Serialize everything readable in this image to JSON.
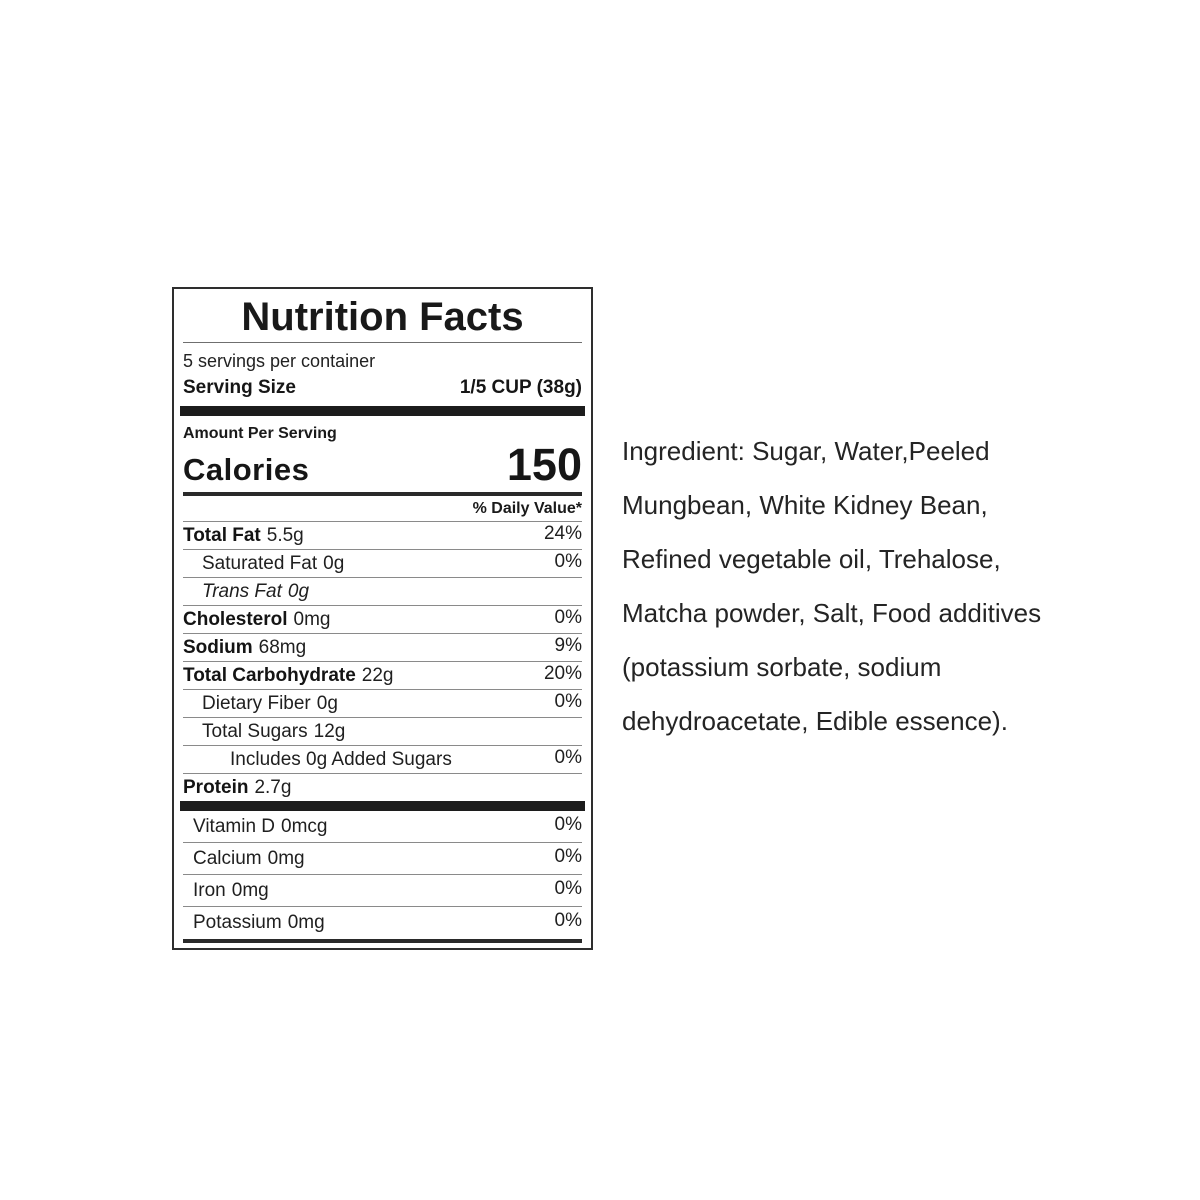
{
  "label": {
    "title": "Nutrition Facts",
    "servings_per_container": "5 servings per container",
    "serving_size_label": "Serving Size",
    "serving_size_value": "1/5 CUP (38g)",
    "amount_per_serving": "Amount Per Serving",
    "calories_label": "Calories",
    "calories_value": "150",
    "daily_value_header": "% Daily Value*",
    "rows": [
      {
        "label": "Total Fat",
        "amount": "5.5g",
        "dv": "24%"
      },
      {
        "label": "Saturated Fat",
        "amount": "0g",
        "dv": "0%"
      },
      {
        "label": "Trans Fat",
        "amount": "0g",
        "dv": ""
      },
      {
        "label": "Cholesterol",
        "amount": "0mg",
        "dv": "0%"
      },
      {
        "label": "Sodium",
        "amount": "68mg",
        "dv": "9%"
      },
      {
        "label": "Total Carbohydrate",
        "amount": "22g",
        "dv": "20%"
      },
      {
        "label": "Dietary Fiber",
        "amount": "0g",
        "dv": "0%"
      },
      {
        "label": "Total Sugars",
        "amount": "12g",
        "dv": ""
      },
      {
        "label": "Includes 0g Added Sugars",
        "amount": "",
        "dv": "0%"
      },
      {
        "label": "Protein",
        "amount": "2.7g",
        "dv": ""
      },
      {
        "label": "Vitamin D",
        "amount": "0mcg",
        "dv": "0%"
      },
      {
        "label": "Calcium",
        "amount": "0mg",
        "dv": "0%"
      },
      {
        "label": "Iron",
        "amount": "0mg",
        "dv": "0%"
      },
      {
        "label": "Potassium",
        "amount": "0mg",
        "dv": "0%"
      }
    ]
  },
  "ingredients": {
    "lines": [
      "Ingredient: Sugar, Water,Peeled",
      "Mungbean, White Kidney Bean,",
      "Refined vegetable oil, Trehalose,",
      "Matcha powder, Salt, Food additives",
      "(potassium sorbate, sodium",
      "dehydroacetate, Edible essence)."
    ]
  }
}
